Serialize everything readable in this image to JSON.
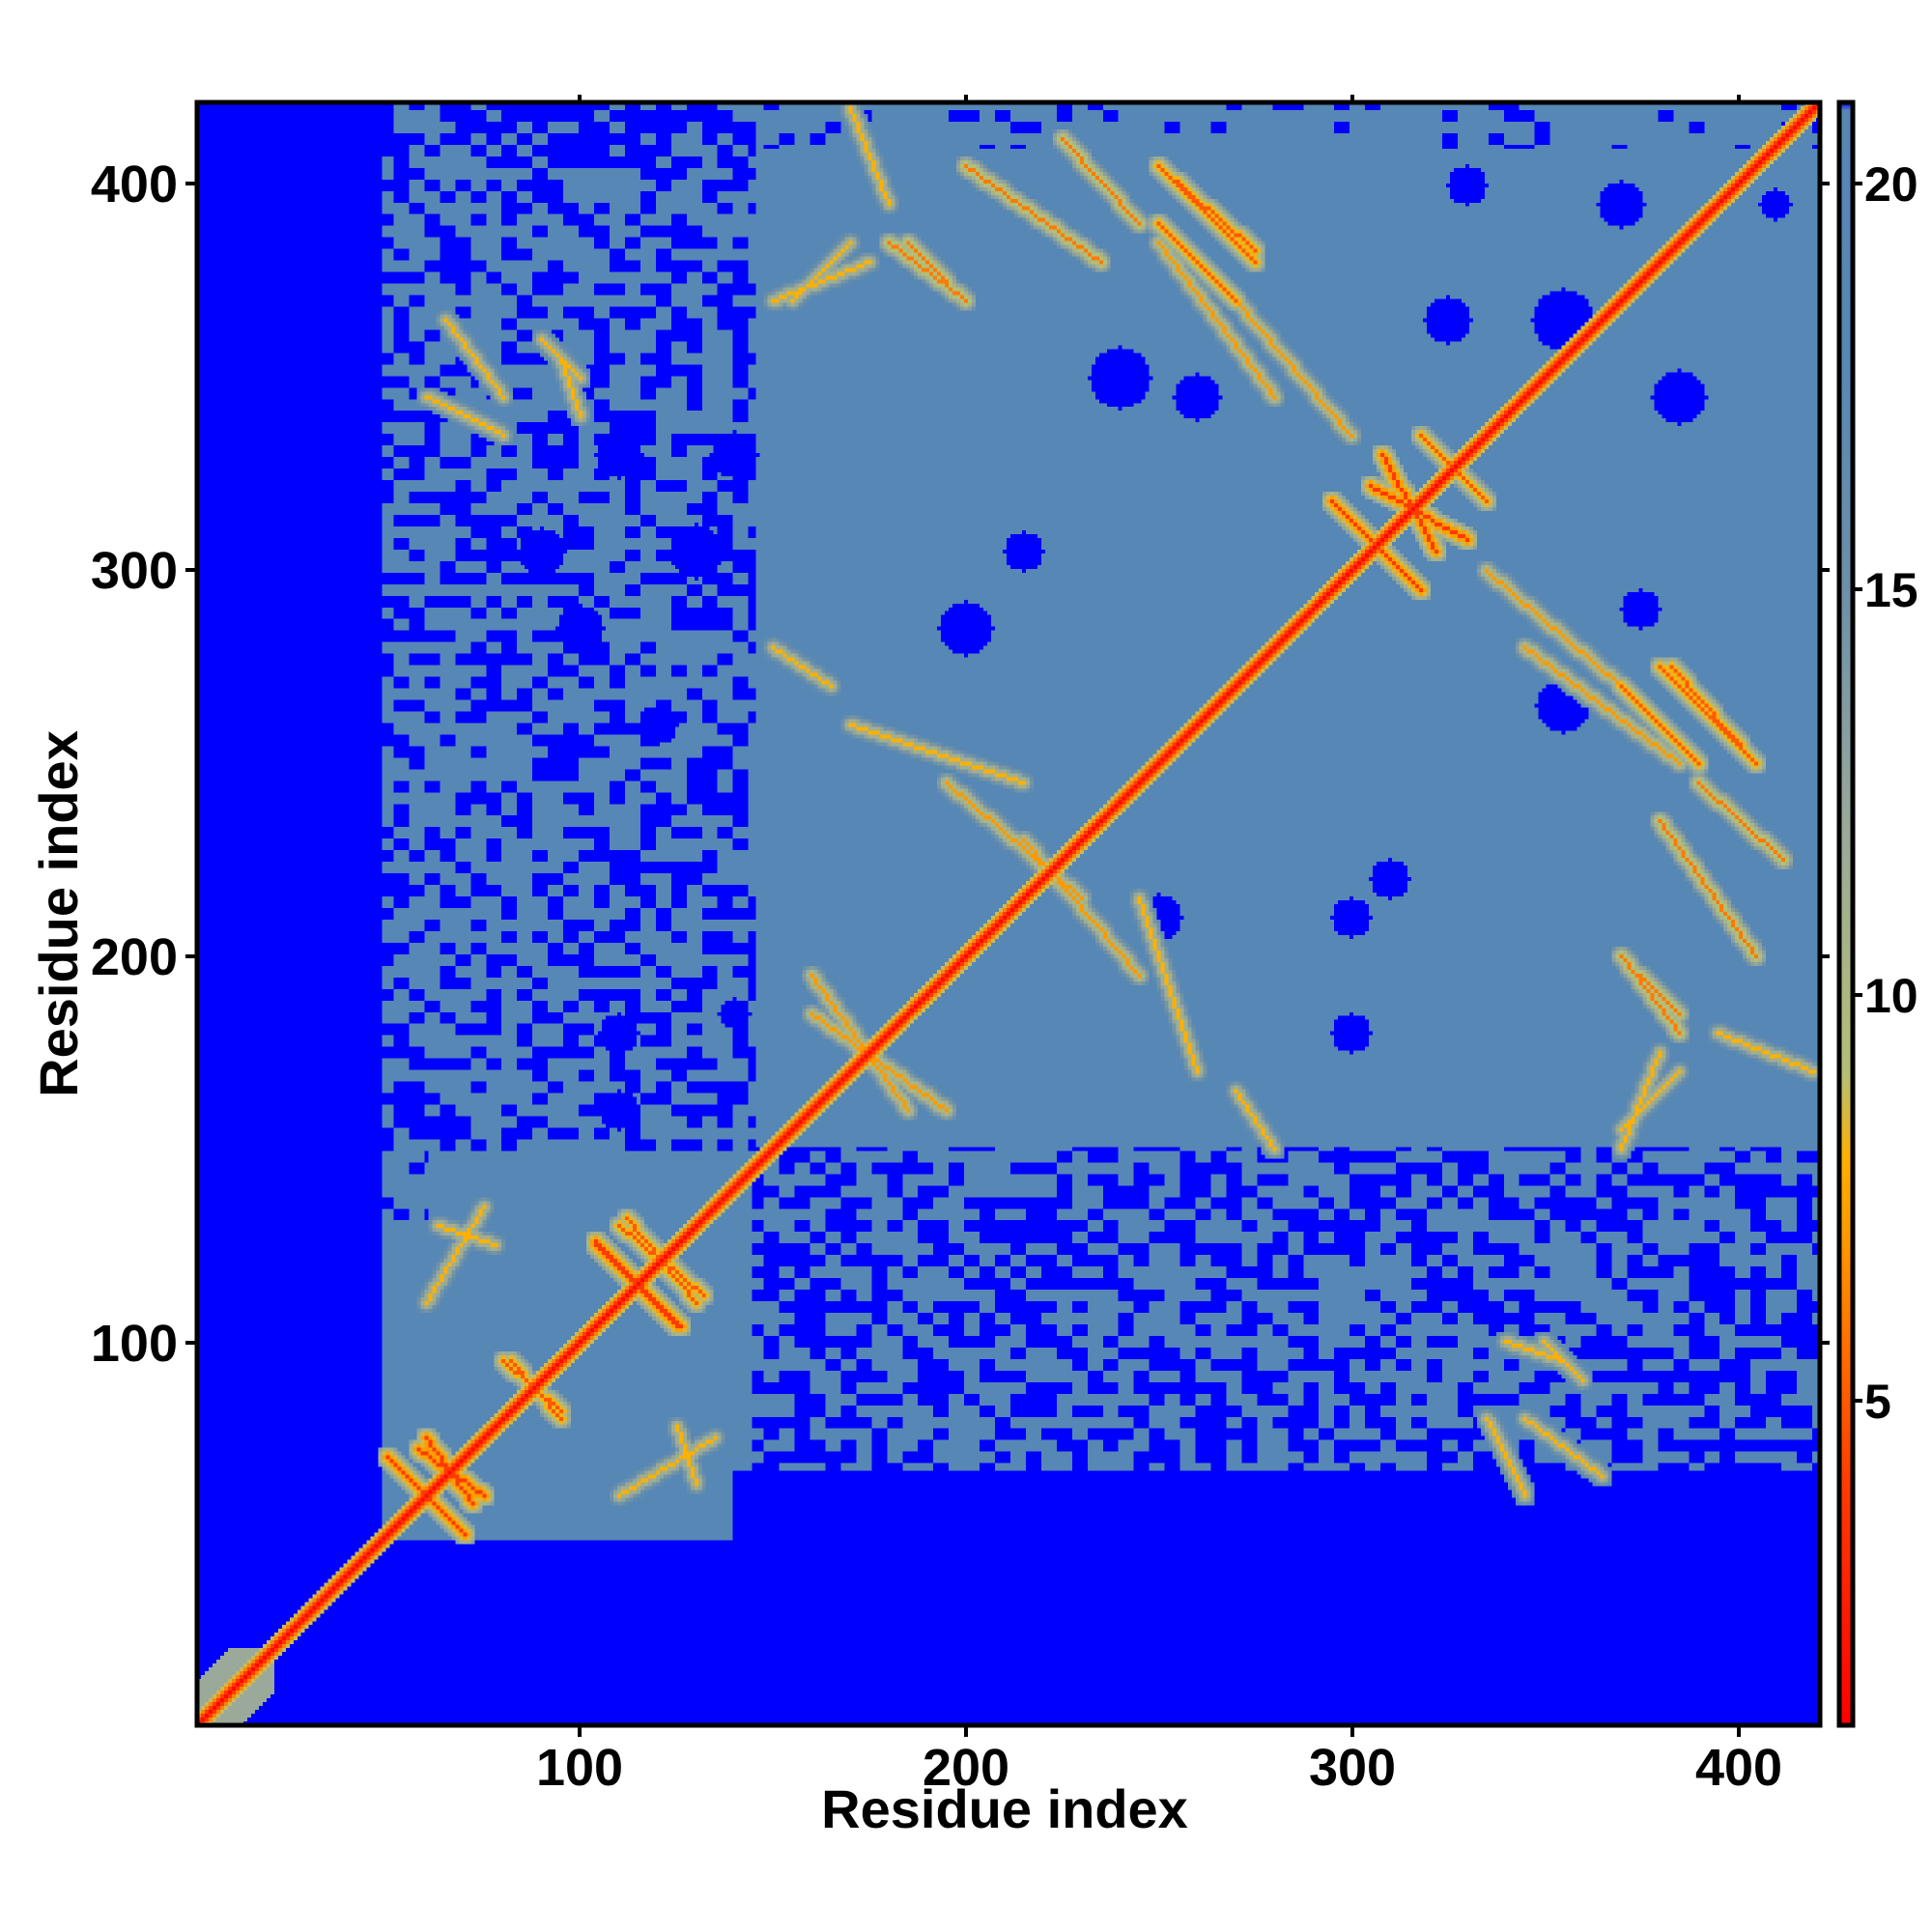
{
  "chart_data": {
    "type": "heatmap",
    "title": "",
    "xlabel": "Residue index",
    "ylabel": "Residue index",
    "xlim": [
      1,
      421
    ],
    "ylim": [
      1,
      421
    ],
    "x_ticks": [
      100,
      200,
      300,
      400
    ],
    "y_ticks": [
      100,
      200,
      300,
      400
    ],
    "x_tick_labels": [
      "100",
      "200",
      "300",
      "400"
    ],
    "y_tick_labels": [
      "100",
      "200",
      "300",
      "400"
    ],
    "colorbar": {
      "range": [
        1,
        21
      ],
      "ticks": [
        5,
        10,
        15,
        20
      ],
      "tick_labels": [
        "5",
        "10",
        "15",
        "20"
      ],
      "stops": [
        {
          "value": 1,
          "color": "#ff0000"
        },
        {
          "value": 4,
          "color": "#ff3b00"
        },
        {
          "value": 7,
          "color": "#ff9900"
        },
        {
          "value": 8,
          "color": "#ffb000"
        },
        {
          "value": 9,
          "color": "#b6bf74"
        },
        {
          "value": 12,
          "color": "#9aa99a"
        },
        {
          "value": 15,
          "color": "#6d90a8"
        },
        {
          "value": 18,
          "color": "#5687b5"
        },
        {
          "value": 20.9,
          "color": "#5a86b6"
        },
        {
          "value": 21,
          "color": "#0000ff"
        }
      ]
    },
    "background_value": 21,
    "default_value": 18,
    "diagonal": {
      "start": 1,
      "end": 421,
      "value": 1.5
    },
    "ordered_regions": [
      {
        "x": [
          1,
          20
        ],
        "y": [
          1,
          20
        ],
        "value": 16
      },
      {
        "x": [
          46,
          140
        ],
        "y": [
          46,
          140
        ],
        "value": 17
      },
      {
        "x": [
          50,
          145
        ],
        "y": [
          50,
          140
        ],
        "value": 18
      }
    ],
    "disordered_regions": [
      {
        "x": [
          1,
          48
        ],
        "y": [
          1,
          421
        ],
        "value": 21
      },
      {
        "x": [
          1,
          421
        ],
        "y": [
          1,
          48
        ],
        "value": 21
      },
      {
        "x": [
          140,
          421
        ],
        "y": [
          48,
          66
        ],
        "value": 21
      },
      {
        "x": [
          145,
          421
        ],
        "y": [
          66,
          150
        ],
        "value": 21,
        "fill": 0.45
      },
      {
        "x": [
          48,
          145
        ],
        "y": [
          150,
          421
        ],
        "value": 21,
        "fill": 0.4
      },
      {
        "x": [
          48,
          60
        ],
        "y": [
          130,
          421
        ],
        "value": 21,
        "fill": 0.2
      },
      {
        "x": [
          48,
          145
        ],
        "y": [
          405,
          421
        ],
        "value": 21,
        "fill": 0.6
      },
      {
        "x": [
          148,
          421
        ],
        "y": [
          410,
          421
        ],
        "value": 21,
        "fill": 0.15
      }
    ],
    "contact_bands": [
      {
        "from": [
          50,
          70
        ],
        "to": [
          70,
          50
        ],
        "value": 4
      },
      {
        "from": [
          60,
          75
        ],
        "to": [
          72,
          58
        ],
        "value": 4
      },
      {
        "from": [
          80,
          95
        ],
        "to": [
          95,
          82
        ],
        "value": 5
      },
      {
        "from": [
          104,
          126
        ],
        "to": [
          125,
          104
        ],
        "value": 4
      },
      {
        "from": [
          110,
          130
        ],
        "to": [
          132,
          112
        ],
        "value": 5
      },
      {
        "from": [
          63,
          130
        ],
        "to": [
          78,
          125
        ],
        "value": 8
      },
      {
        "from": [
          110,
          60
        ],
        "to": [
          135,
          75
        ],
        "value": 8
      },
      {
        "from": [
          295,
          318
        ],
        "to": [
          318,
          295
        ],
        "value": 4
      },
      {
        "from": [
          305,
          322
        ],
        "to": [
          330,
          308
        ],
        "value": 4
      },
      {
        "from": [
          318,
          335
        ],
        "to": [
          335,
          318
        ],
        "value": 5
      },
      {
        "from": [
          250,
          405
        ],
        "to": [
          275,
          383
        ],
        "value": 5
      },
      {
        "from": [
          225,
          412
        ],
        "to": [
          245,
          390
        ],
        "value": 6
      },
      {
        "from": [
          250,
          385
        ],
        "to": [
          280,
          345
        ],
        "value": 7
      },
      {
        "from": [
          185,
          385
        ],
        "to": [
          195,
          375
        ],
        "value": 6
      },
      {
        "from": [
          370,
          270
        ],
        "to": [
          390,
          250
        ],
        "value": 5
      },
      {
        "from": [
          380,
          275
        ],
        "to": [
          405,
          250
        ],
        "value": 5
      },
      {
        "from": [
          380,
          235
        ],
        "to": [
          405,
          200
        ],
        "value": 6
      },
      {
        "from": [
          370,
          200
        ],
        "to": [
          385,
          180
        ],
        "value": 6
      },
      {
        "from": [
          335,
          300
        ],
        "to": [
          370,
          270
        ],
        "value": 7
      },
      {
        "from": [
          170,
          260
        ],
        "to": [
          215,
          245
        ],
        "value": 8
      },
      {
        "from": [
          150,
          280
        ],
        "to": [
          165,
          270
        ],
        "value": 8
      },
      {
        "from": [
          215,
          230
        ],
        "to": [
          245,
          195
        ],
        "value": 7
      },
      {
        "from": [
          160,
          195
        ],
        "to": [
          185,
          160
        ],
        "value": 7
      },
      {
        "from": [
          150,
          370
        ],
        "to": [
          175,
          380
        ],
        "value": 8
      },
      {
        "from": [
          90,
          360
        ],
        "to": [
          100,
          350
        ],
        "value": 8
      },
      {
        "from": [
          60,
          345
        ],
        "to": [
          80,
          335
        ],
        "value": 8
      },
      {
        "from": [
          345,
          80
        ],
        "to": [
          365,
          65
        ],
        "value": 8
      },
      {
        "from": [
          340,
          100
        ],
        "to": [
          355,
          95
        ],
        "value": 8
      },
      {
        "from": [
          395,
          180
        ],
        "to": [
          420,
          170
        ],
        "value": 8
      },
      {
        "from": [
          370,
          155
        ],
        "to": [
          385,
          170
        ],
        "value": 8
      }
    ],
    "blobs": [
      {
        "x": 240,
        "y": 350,
        "r": 8,
        "value": 21
      },
      {
        "x": 260,
        "y": 345,
        "r": 6,
        "value": 21
      },
      {
        "x": 355,
        "y": 365,
        "r": 8,
        "value": 21
      },
      {
        "x": 385,
        "y": 345,
        "r": 7,
        "value": 21
      },
      {
        "x": 325,
        "y": 365,
        "r": 6,
        "value": 21
      },
      {
        "x": 355,
        "y": 265,
        "r": 7,
        "value": 21
      },
      {
        "x": 370,
        "y": 395,
        "r": 6,
        "value": 21
      },
      {
        "x": 200,
        "y": 285,
        "r": 7,
        "value": 21
      },
      {
        "x": 250,
        "y": 210,
        "r": 6,
        "value": 21
      },
      {
        "x": 300,
        "y": 210,
        "r": 5,
        "value": 21
      },
      {
        "x": 310,
        "y": 220,
        "r": 5,
        "value": 21
      },
      {
        "x": 215,
        "y": 305,
        "r": 5,
        "value": 21
      },
      {
        "x": 375,
        "y": 290,
        "r": 5,
        "value": 21
      },
      {
        "x": 330,
        "y": 400,
        "r": 5,
        "value": 21
      },
      {
        "x": 410,
        "y": 395,
        "r": 4,
        "value": 21
      },
      {
        "x": 110,
        "y": 330,
        "r": 6,
        "value": 21
      },
      {
        "x": 90,
        "y": 305,
        "r": 6,
        "value": 21
      },
      {
        "x": 130,
        "y": 305,
        "r": 7,
        "value": 21
      },
      {
        "x": 100,
        "y": 285,
        "r": 6,
        "value": 21
      },
      {
        "x": 120,
        "y": 260,
        "r": 5,
        "value": 21
      },
      {
        "x": 110,
        "y": 180,
        "r": 5,
        "value": 21
      },
      {
        "x": 110,
        "y": 160,
        "r": 5,
        "value": 21
      },
      {
        "x": 140,
        "y": 330,
        "r": 6,
        "value": 21
      },
      {
        "x": 140,
        "y": 185,
        "r": 4,
        "value": 21
      },
      {
        "x": 300,
        "y": 180,
        "r": 5,
        "value": 21
      }
    ]
  }
}
